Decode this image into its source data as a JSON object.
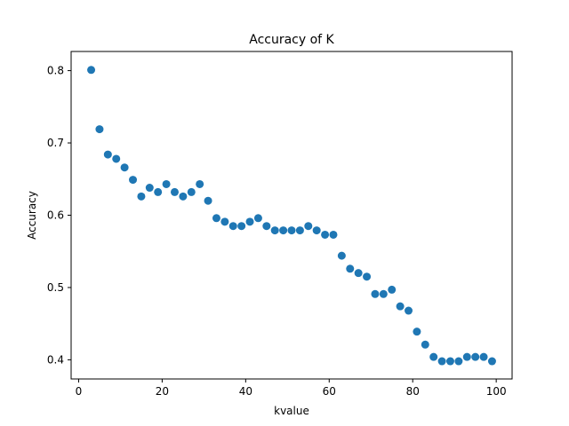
{
  "chart_data": {
    "type": "scatter",
    "title": "Accuracy of K",
    "xlabel": "kvalue",
    "ylabel": "Accuracy",
    "xlim": [
      -1.8,
      103.8
    ],
    "ylim": [
      0.3735,
      0.8265
    ],
    "xticks": [
      0,
      20,
      40,
      60,
      80,
      100
    ],
    "xtick_labels": [
      "0",
      "20",
      "40",
      "60",
      "80",
      "100"
    ],
    "yticks": [
      0.4,
      0.5,
      0.6,
      0.7,
      0.8
    ],
    "ytick_labels": [
      "0.4",
      "0.5",
      "0.6",
      "0.7",
      "0.8"
    ],
    "grid": false,
    "marker_color": "#1f77b4",
    "series": [
      {
        "x": [
          3,
          5,
          7,
          9,
          11,
          13,
          15,
          17,
          19,
          21,
          23,
          25,
          27,
          29,
          31,
          33,
          35,
          37,
          39,
          41,
          43,
          45,
          47,
          49,
          51,
          53,
          55,
          57,
          59,
          61,
          63,
          65,
          67,
          69,
          71,
          73,
          75,
          77,
          79,
          81,
          83,
          85,
          87,
          89,
          91,
          93,
          95,
          97,
          99
        ],
        "y": [
          0.801,
          0.719,
          0.684,
          0.678,
          0.666,
          0.649,
          0.626,
          0.638,
          0.632,
          0.643,
          0.632,
          0.626,
          0.632,
          0.643,
          0.62,
          0.596,
          0.591,
          0.585,
          0.585,
          0.591,
          0.596,
          0.585,
          0.579,
          0.579,
          0.579,
          0.579,
          0.585,
          0.579,
          0.573,
          0.573,
          0.544,
          0.526,
          0.52,
          0.515,
          0.491,
          0.491,
          0.497,
          0.474,
          0.468,
          0.439,
          0.421,
          0.404,
          0.398,
          0.398,
          0.398,
          0.404,
          0.404,
          0.404,
          0.398
        ]
      }
    ]
  }
}
